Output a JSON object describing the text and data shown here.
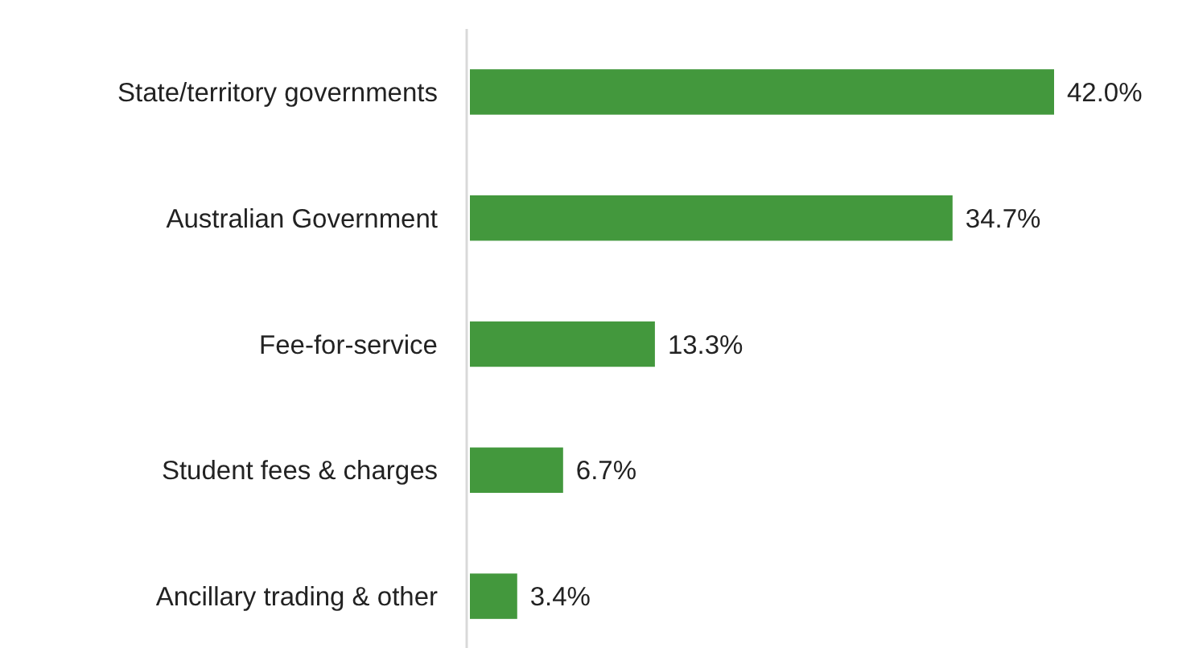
{
  "chart_data": {
    "type": "bar",
    "orientation": "horizontal",
    "categories": [
      "State/territory governments",
      "Australian Government",
      "Fee-for-service",
      "Student fees & charges",
      "Ancillary trading & other"
    ],
    "values": [
      42.0,
      34.7,
      13.3,
      6.7,
      3.4
    ],
    "value_labels": [
      "42.0%",
      "34.7%",
      "13.3%",
      "6.7%",
      "3.4%"
    ],
    "color": "#43983d"
  }
}
